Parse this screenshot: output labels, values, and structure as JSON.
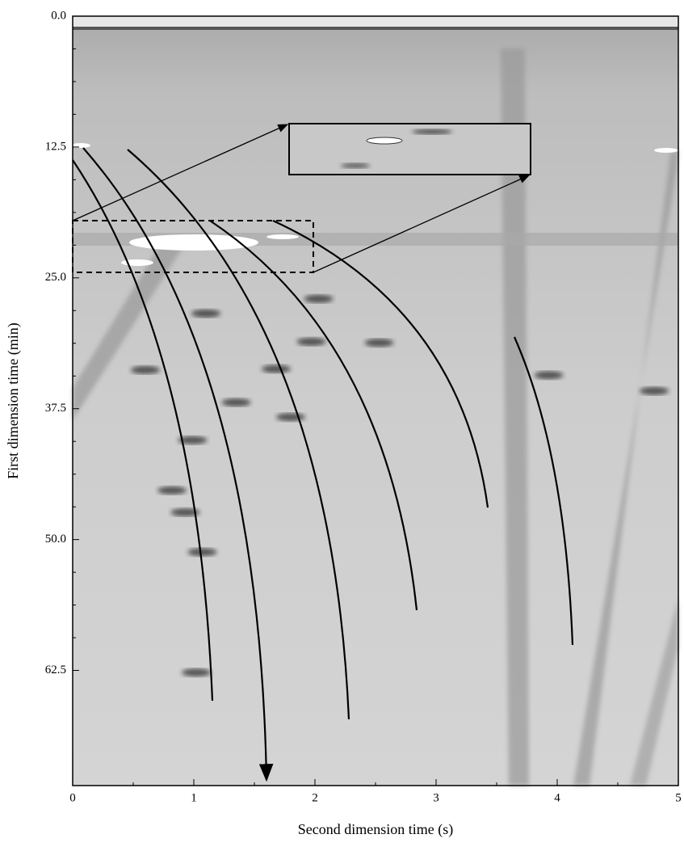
{
  "chart_data": {
    "type": "scatter",
    "xlabel": "Second dimension time (s)",
    "ylabel": "First dimension time (min)",
    "xlim": [
      0,
      5
    ],
    "xticks": [
      0,
      1,
      2,
      3,
      4,
      5
    ],
    "ylim": [
      0,
      73.5
    ],
    "yticks": [
      {
        "value": 0,
        "label": "0.0"
      },
      12.5,
      {
        "value": 25,
        "label": "25.0"
      },
      37.5,
      {
        "value": 50,
        "label": "50.0"
      },
      62.5
    ],
    "y_inverted": true,
    "series": [
      {
        "color": "#2a2a2a",
        "x": [
          0.99,
          1.35,
          1.1,
          1.02,
          0.82,
          0.93,
          1.07,
          1.68,
          1.97,
          2.03,
          2.53,
          3.93,
          4.8,
          0.6,
          1.8
        ],
        "values": [
          40.5,
          36.9,
          28.4,
          62.7,
          45.3,
          47.4,
          51.2,
          33.7,
          31.1,
          27.0,
          31.2,
          34.3,
          35.8,
          33.8,
          38.3
        ]
      }
    ]
  }
}
